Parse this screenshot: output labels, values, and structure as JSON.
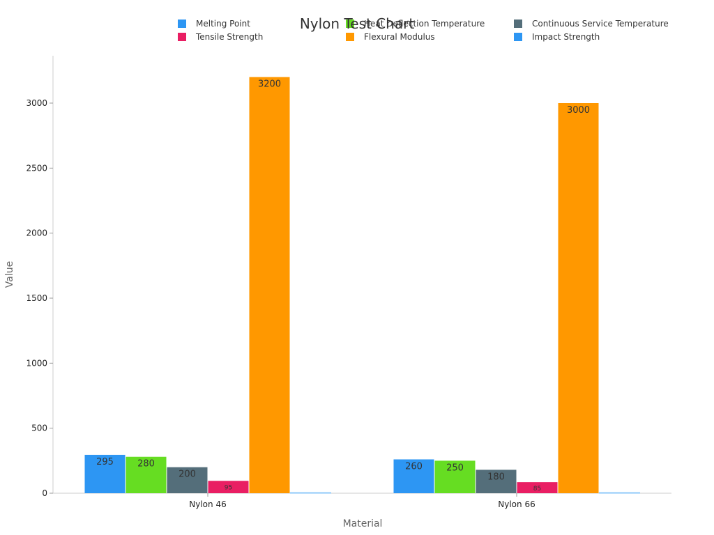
{
  "chart_data": {
    "type": "bar",
    "title": "Nylon Test Chart",
    "xlabel": "Material",
    "ylabel": "Value",
    "categories": [
      "Nylon 46",
      "Nylon 66"
    ],
    "ylim": [
      0,
      3400
    ],
    "yticks": [
      0,
      500,
      1000,
      1500,
      2000,
      2500,
      3000
    ],
    "yticks_labels": [
      "0",
      "500",
      "1000",
      "1500",
      "2000",
      "2500",
      "3000"
    ],
    "grid": false,
    "legend_position": "top",
    "series": [
      {
        "name": "Melting Point",
        "color": "#2d96f3",
        "values": [
          295,
          260
        ],
        "labels": [
          "295",
          "260"
        ],
        "label_color": "#333333"
      },
      {
        "name": "Heat Deflection Temperature",
        "color": "#66dd22",
        "values": [
          280,
          250
        ],
        "labels": [
          "280",
          "250"
        ],
        "label_color": "#333333"
      },
      {
        "name": "Continuous Service Temperature",
        "color": "#546e7a",
        "values": [
          200,
          180
        ],
        "labels": [
          "200",
          "180"
        ],
        "label_color": "#ffffff"
      },
      {
        "name": "Tensile Strength",
        "color": "#e91e63",
        "values": [
          95,
          85
        ],
        "labels": [
          "95",
          "85"
        ],
        "label_color": "#ffffff"
      },
      {
        "name": "Flexural Modulus",
        "color": "#ff9800",
        "values": [
          3200,
          3000
        ],
        "labels": [
          "3200",
          "3000"
        ],
        "label_color": "#333333"
      },
      {
        "name": "Impact Strength",
        "color": "#2d96f3",
        "values": [
          5,
          5
        ],
        "labels": [],
        "label_color": "#333333"
      }
    ]
  }
}
